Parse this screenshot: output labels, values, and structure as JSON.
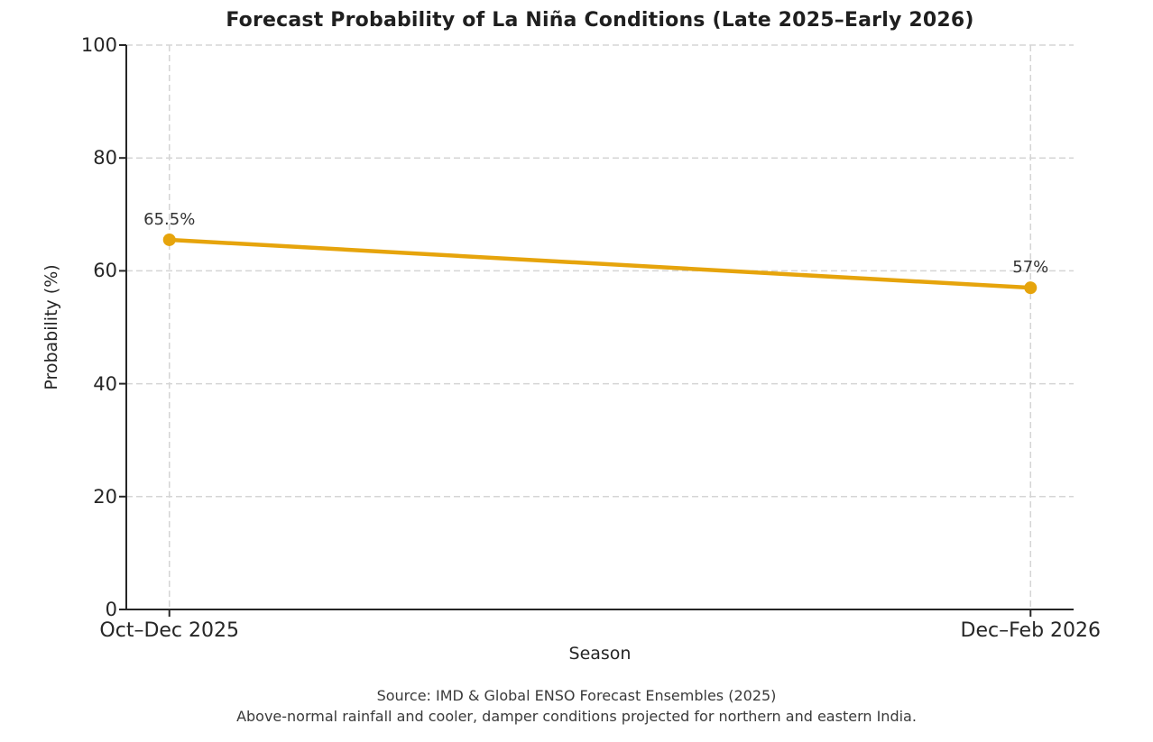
{
  "figure": {
    "footer_line1": "Source: IMD & Global ENSO Forecast Ensembles (2025)",
    "footer_line2": "Above-normal rainfall and cooler, damper conditions projected for northern and eastern India."
  },
  "chart_data": {
    "type": "line",
    "title": "Forecast Probability of La Niña Conditions (Late 2025–Early 2026)",
    "categories": [
      "Oct–Dec 2025",
      "Dec–Feb 2026"
    ],
    "values": [
      65.5,
      57
    ],
    "point_labels": [
      "65.5%",
      "57%"
    ],
    "xlabel": "Season",
    "ylabel": "Probability (%)",
    "ylim": [
      0,
      100
    ],
    "yticks": [
      0,
      20,
      40,
      60,
      80,
      100
    ],
    "grid": "dashed horizontal and vertical at ticks",
    "legend": "none",
    "colors": {
      "line": "#E6A40C",
      "marker": "#E6A40C",
      "grid": "#d5d5d5",
      "spine": "#262626",
      "text": "#262626",
      "muted_text": "#3a3a3a"
    }
  }
}
